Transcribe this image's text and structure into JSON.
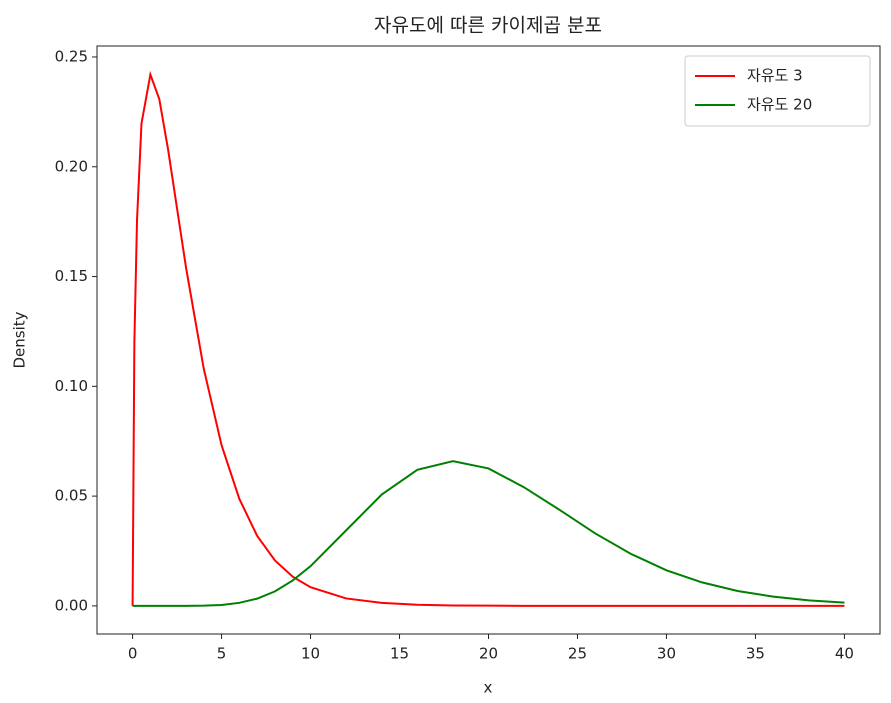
{
  "chart_data": {
    "type": "line",
    "title": "자유도에 따른 카이제곱 분포",
    "xlabel": "x",
    "ylabel": "Density",
    "x": [
      0,
      0.1,
      0.25,
      0.5,
      1,
      1.5,
      2,
      3,
      4,
      5,
      6,
      7,
      8,
      9,
      10,
      12,
      14,
      16,
      18,
      20,
      22,
      24,
      26,
      28,
      30,
      32,
      34,
      36,
      38,
      40
    ],
    "series": [
      {
        "name": "자유도 3",
        "color": "#ff0000",
        "values": [
          0,
          0.12,
          0.176,
          0.2197,
          0.242,
          0.2308,
          0.2076,
          0.1542,
          0.108,
          0.0732,
          0.0487,
          0.0319,
          0.0207,
          0.0133,
          0.0085,
          0.0034,
          0.0014,
          0.0005,
          0.0002,
          0.0001,
          0,
          0,
          0,
          0,
          0,
          0,
          0,
          0,
          0,
          0
        ]
      },
      {
        "name": "자유도 20",
        "color": "#008000",
        "values": [
          0,
          0,
          0,
          0,
          0,
          0,
          0,
          0,
          0.0001,
          0.0004,
          0.0014,
          0.0033,
          0.0066,
          0.0116,
          0.0181,
          0.0344,
          0.0507,
          0.062,
          0.0659,
          0.0626,
          0.054,
          0.0437,
          0.033,
          0.0237,
          0.0162,
          0.0107,
          0.0068,
          0.0042,
          0.0025,
          0.0015
        ]
      }
    ],
    "xlim": [
      -2,
      42
    ],
    "xticks": [
      0,
      5,
      10,
      15,
      20,
      25,
      30,
      35,
      40
    ],
    "ylim": [
      -0.0128,
      0.255
    ],
    "yticks": [
      {
        "value": 0,
        "label": "0.00"
      },
      {
        "value": 0.05,
        "label": "0.05"
      },
      {
        "value": 0.1,
        "label": "0.10"
      },
      {
        "value": 0.15,
        "label": "0.15"
      },
      {
        "value": 0.2,
        "label": "0.20"
      },
      {
        "value": 0.25,
        "label": "0.25"
      }
    ],
    "legend": "upper right"
  }
}
